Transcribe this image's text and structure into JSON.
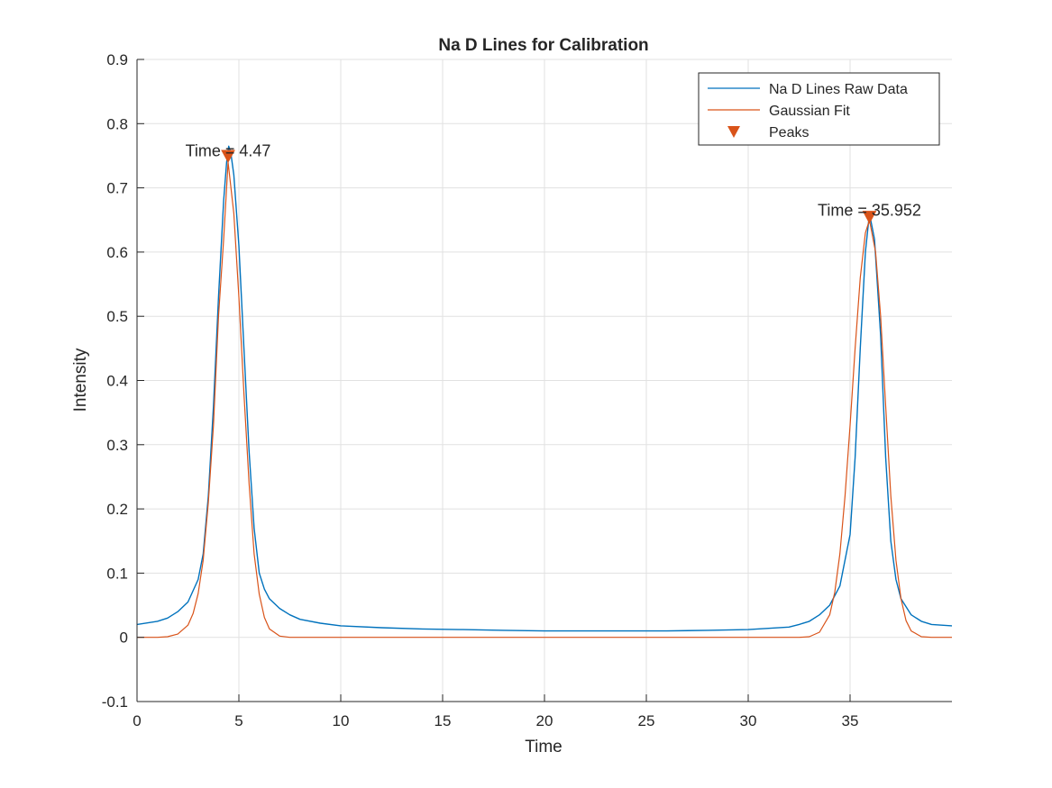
{
  "chart_data": {
    "type": "line",
    "title": "Na D Lines for Calibration",
    "xlabel": "Time",
    "ylabel": "Intensity",
    "xlim": [
      0,
      40
    ],
    "ylim": [
      -0.1,
      0.9
    ],
    "xticks": [
      0,
      5,
      10,
      15,
      20,
      25,
      30,
      35
    ],
    "yticks": [
      -0.1,
      0,
      0.1,
      0.2,
      0.3,
      0.4,
      0.5,
      0.6,
      0.7,
      0.8,
      0.9
    ],
    "grid": true,
    "legend_position": "top-right",
    "series": [
      {
        "name": "Na D Lines Raw Data",
        "color": "#0072BD",
        "style": "line",
        "x": [
          0,
          1,
          1.5,
          2,
          2.5,
          3,
          3.25,
          3.5,
          3.75,
          4,
          4.25,
          4.4,
          4.5,
          4.6,
          4.75,
          5,
          5.25,
          5.5,
          5.75,
          6,
          6.25,
          6.5,
          7,
          7.5,
          8,
          9,
          10,
          12,
          14,
          16,
          18,
          20,
          22,
          24,
          26,
          28,
          30,
          31,
          32,
          32.5,
          33,
          33.5,
          34,
          34.5,
          35,
          35.25,
          35.5,
          35.75,
          35.95,
          36.2,
          36.5,
          36.75,
          37,
          37.25,
          37.5,
          38,
          38.5,
          39,
          40
        ],
        "y": [
          0.02,
          0.025,
          0.03,
          0.04,
          0.055,
          0.09,
          0.13,
          0.22,
          0.36,
          0.53,
          0.68,
          0.74,
          0.765,
          0.755,
          0.72,
          0.61,
          0.45,
          0.29,
          0.17,
          0.1,
          0.075,
          0.06,
          0.045,
          0.035,
          0.028,
          0.022,
          0.018,
          0.015,
          0.013,
          0.012,
          0.011,
          0.01,
          0.01,
          0.01,
          0.01,
          0.011,
          0.012,
          0.014,
          0.016,
          0.02,
          0.025,
          0.035,
          0.05,
          0.08,
          0.16,
          0.28,
          0.45,
          0.6,
          0.66,
          0.62,
          0.47,
          0.28,
          0.15,
          0.09,
          0.06,
          0.035,
          0.025,
          0.02,
          0.018
        ]
      },
      {
        "name": "Gaussian Fit",
        "color": "#D95319",
        "style": "line",
        "x": [
          0,
          1,
          1.5,
          2,
          2.5,
          2.75,
          3,
          3.25,
          3.5,
          3.75,
          4,
          4.25,
          4.47,
          4.75,
          5,
          5.25,
          5.5,
          5.75,
          6,
          6.25,
          6.5,
          7,
          7.5,
          8,
          31.5,
          32.5,
          33,
          33.5,
          34,
          34.25,
          34.5,
          34.75,
          35,
          35.25,
          35.5,
          35.75,
          35.952,
          36.25,
          36.5,
          36.75,
          37,
          37.25,
          37.5,
          37.75,
          38,
          38.5,
          39,
          40
        ],
        "y": [
          0,
          0,
          0.001,
          0.005,
          0.019,
          0.037,
          0.068,
          0.12,
          0.21,
          0.33,
          0.5,
          0.62,
          0.74,
          0.66,
          0.53,
          0.38,
          0.24,
          0.13,
          0.067,
          0.031,
          0.013,
          0.002,
          0,
          0,
          0,
          0,
          0.001,
          0.008,
          0.035,
          0.07,
          0.13,
          0.22,
          0.33,
          0.45,
          0.56,
          0.63,
          0.65,
          0.6,
          0.5,
          0.36,
          0.22,
          0.12,
          0.06,
          0.026,
          0.01,
          0.001,
          0,
          0
        ]
      },
      {
        "name": "Peaks",
        "color": "#D95319",
        "style": "marker-triangle-down",
        "x": [
          4.47,
          35.952
        ],
        "y": [
          0.75,
          0.655
        ]
      }
    ],
    "annotations": [
      {
        "text": "Time =   4.47",
        "x": 4.47,
        "y": 0.765
      },
      {
        "text": "Time = 35.952",
        "x": 35.952,
        "y": 0.672
      }
    ]
  }
}
